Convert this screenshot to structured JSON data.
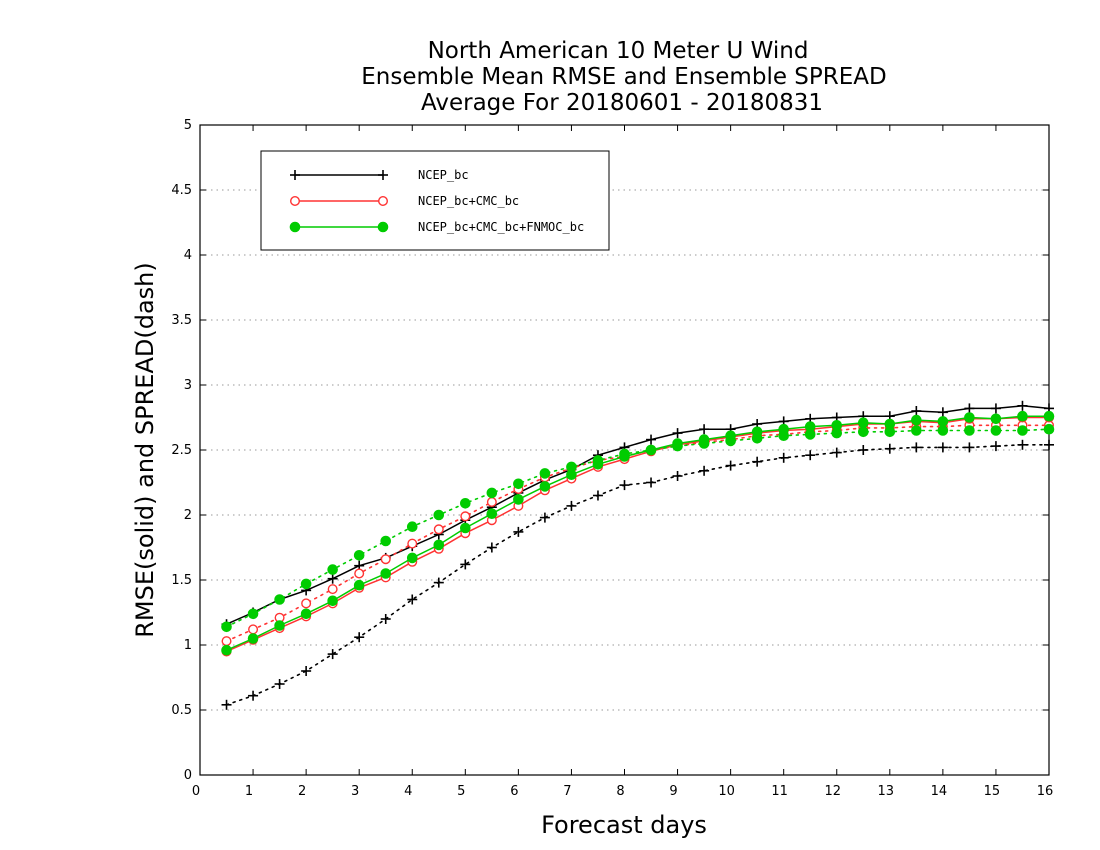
{
  "chart_data": {
    "type": "line",
    "title": [
      "North American 10 Meter U Wind",
      "Ensemble Mean RMSE and Ensemble SPREAD",
      "Average For 20180601 - 20180831"
    ],
    "xlabel": "Forecast days",
    "ylabel": "RMSE(solid) and SPREAD(dash)",
    "xlim": [
      0,
      16
    ],
    "ylim": [
      0,
      5
    ],
    "xticks": [
      "0",
      "1",
      "2",
      "3",
      "4",
      "5",
      "6",
      "7",
      "8",
      "9",
      "10",
      "11",
      "12",
      "13",
      "14",
      "15",
      "16"
    ],
    "yticks": [
      "0",
      "0.5",
      "1",
      "1.5",
      "2",
      "2.5",
      "3",
      "3.5",
      "4",
      "4.5",
      "5"
    ],
    "grid": "horizontal dotted",
    "legend_position": "top-left",
    "x": [
      0.5,
      1,
      1.5,
      2,
      2.5,
      3,
      3.5,
      4,
      4.5,
      5,
      5.5,
      6,
      6.5,
      7,
      7.5,
      8,
      8.5,
      9,
      9.5,
      10,
      10.5,
      11,
      11.5,
      12,
      12.5,
      13,
      13.5,
      14,
      14.5,
      15,
      15.5,
      16
    ],
    "series": [
      {
        "name": "NCEP_bc",
        "color": "#000000",
        "marker": "plus",
        "rmse": [
          1.16,
          1.25,
          1.35,
          1.42,
          1.51,
          1.61,
          1.67,
          1.76,
          1.85,
          1.96,
          2.06,
          2.17,
          2.27,
          2.35,
          2.46,
          2.52,
          2.58,
          2.63,
          2.66,
          2.66,
          2.7,
          2.72,
          2.74,
          2.75,
          2.76,
          2.76,
          2.8,
          2.79,
          2.82,
          2.82,
          2.84,
          2.82
        ],
        "spread": [
          0.54,
          0.61,
          0.7,
          0.8,
          0.93,
          1.06,
          1.2,
          1.35,
          1.48,
          1.62,
          1.75,
          1.87,
          1.98,
          2.07,
          2.15,
          2.23,
          2.25,
          2.3,
          2.34,
          2.38,
          2.41,
          2.44,
          2.46,
          2.48,
          2.5,
          2.51,
          2.52,
          2.52,
          2.52,
          2.53,
          2.54,
          2.54
        ]
      },
      {
        "name": "NCEP_bc+CMC_bc",
        "color": "#ff3333",
        "marker": "open-circle",
        "rmse": [
          0.95,
          1.04,
          1.13,
          1.22,
          1.32,
          1.44,
          1.52,
          1.64,
          1.74,
          1.86,
          1.96,
          2.07,
          2.19,
          2.28,
          2.37,
          2.43,
          2.49,
          2.54,
          2.57,
          2.6,
          2.63,
          2.65,
          2.66,
          2.68,
          2.7,
          2.7,
          2.72,
          2.71,
          2.74,
          2.74,
          2.75,
          2.75
        ],
        "spread": [
          1.03,
          1.12,
          1.21,
          1.32,
          1.43,
          1.55,
          1.66,
          1.78,
          1.89,
          1.99,
          2.1,
          2.2,
          2.29,
          2.36,
          2.42,
          2.45,
          2.5,
          2.53,
          2.56,
          2.58,
          2.61,
          2.62,
          2.64,
          2.65,
          2.67,
          2.67,
          2.68,
          2.68,
          2.69,
          2.69,
          2.69,
          2.69
        ]
      },
      {
        "name": "NCEP_bc+CMC_bc+FNMOC_bc",
        "color": "#00cc00",
        "marker": "filled-circle",
        "rmse": [
          0.96,
          1.05,
          1.15,
          1.24,
          1.34,
          1.46,
          1.55,
          1.67,
          1.77,
          1.9,
          2.01,
          2.12,
          2.22,
          2.31,
          2.39,
          2.45,
          2.5,
          2.55,
          2.58,
          2.61,
          2.64,
          2.66,
          2.68,
          2.69,
          2.71,
          2.7,
          2.73,
          2.72,
          2.75,
          2.74,
          2.76,
          2.76
        ],
        "spread": [
          1.14,
          1.24,
          1.35,
          1.47,
          1.58,
          1.69,
          1.8,
          1.91,
          2.0,
          2.09,
          2.17,
          2.24,
          2.32,
          2.37,
          2.42,
          2.47,
          2.5,
          2.53,
          2.55,
          2.57,
          2.59,
          2.61,
          2.62,
          2.63,
          2.64,
          2.64,
          2.65,
          2.65,
          2.65,
          2.65,
          2.65,
          2.66
        ]
      }
    ]
  }
}
